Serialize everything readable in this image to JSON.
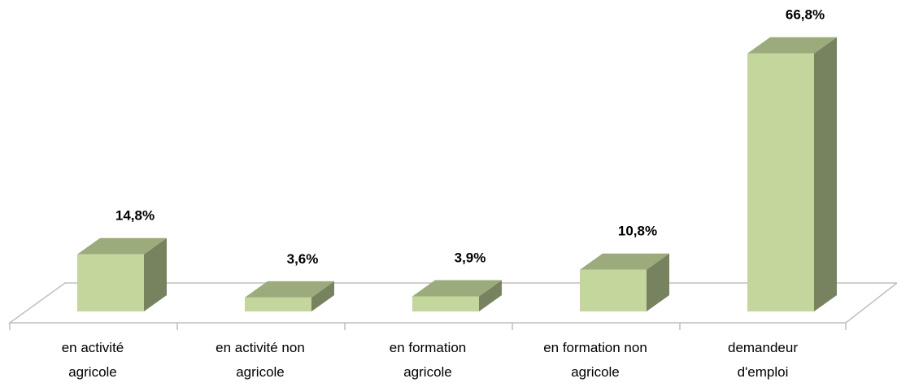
{
  "chart_data": {
    "type": "bar3d",
    "categories": [
      "en activité\nagricole",
      "en activité non\nagricole",
      "en formation\nagricole",
      "en formation non\nagricole",
      "demandeur\nd'emploi"
    ],
    "values": [
      14.8,
      3.6,
      3.9,
      10.8,
      66.8
    ],
    "value_labels": [
      "14,8%",
      "3,6%",
      "3,9%",
      "10,8%",
      "66,8%"
    ],
    "color": "#c3d69b"
  }
}
